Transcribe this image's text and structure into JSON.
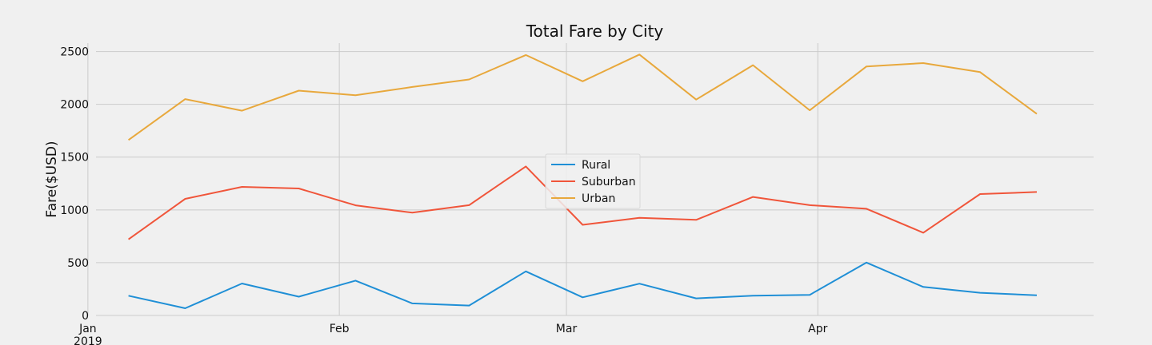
{
  "chart_data": {
    "type": "line",
    "title": "Total Fare by City",
    "xlabel": "",
    "ylabel": "Fare($USD)",
    "x": [
      "2019-01-06",
      "2019-01-13",
      "2019-01-20",
      "2019-01-27",
      "2019-02-03",
      "2019-02-10",
      "2019-02-17",
      "2019-02-24",
      "2019-03-03",
      "2019-03-10",
      "2019-03-17",
      "2019-03-24",
      "2019-03-31",
      "2019-04-07",
      "2019-04-14",
      "2019-04-21",
      "2019-04-28"
    ],
    "xlim": [
      "2019-01-02",
      "2019-05-05"
    ],
    "x_ticks": [
      {
        "date": "2019-01-01",
        "label": "Jan",
        "sublabel": "2019"
      },
      {
        "date": "2019-02-01",
        "label": "Feb",
        "sublabel": ""
      },
      {
        "date": "2019-03-01",
        "label": "Mar",
        "sublabel": ""
      },
      {
        "date": "2019-04-01",
        "label": "Apr",
        "sublabel": ""
      }
    ],
    "ylim": [
      0,
      2580
    ],
    "y_ticks": [
      0,
      500,
      1000,
      1500,
      2000,
      2500
    ],
    "grid": true,
    "legend_position": "center",
    "series": [
      {
        "name": "Rural",
        "color": "#1f8fd6",
        "values": [
          187,
          68,
          303,
          178,
          330,
          114,
          94,
          418,
          172,
          301,
          162,
          188,
          195,
          501,
          270,
          215,
          191
        ]
      },
      {
        "name": "Suburban",
        "color": "#f0553a",
        "values": [
          721,
          1105,
          1218,
          1203,
          1043,
          974,
          1045,
          1412,
          859,
          925,
          906,
          1123,
          1045,
          1011,
          784,
          1150,
          1170
        ]
      },
      {
        "name": "Urban",
        "color": "#e8a83c",
        "values": [
          1662,
          2050,
          1940,
          2130,
          2086,
          2165,
          2236,
          2467,
          2218,
          2472,
          2045,
          2371,
          1944,
          2359,
          2391,
          2305,
          1910
        ]
      }
    ]
  }
}
